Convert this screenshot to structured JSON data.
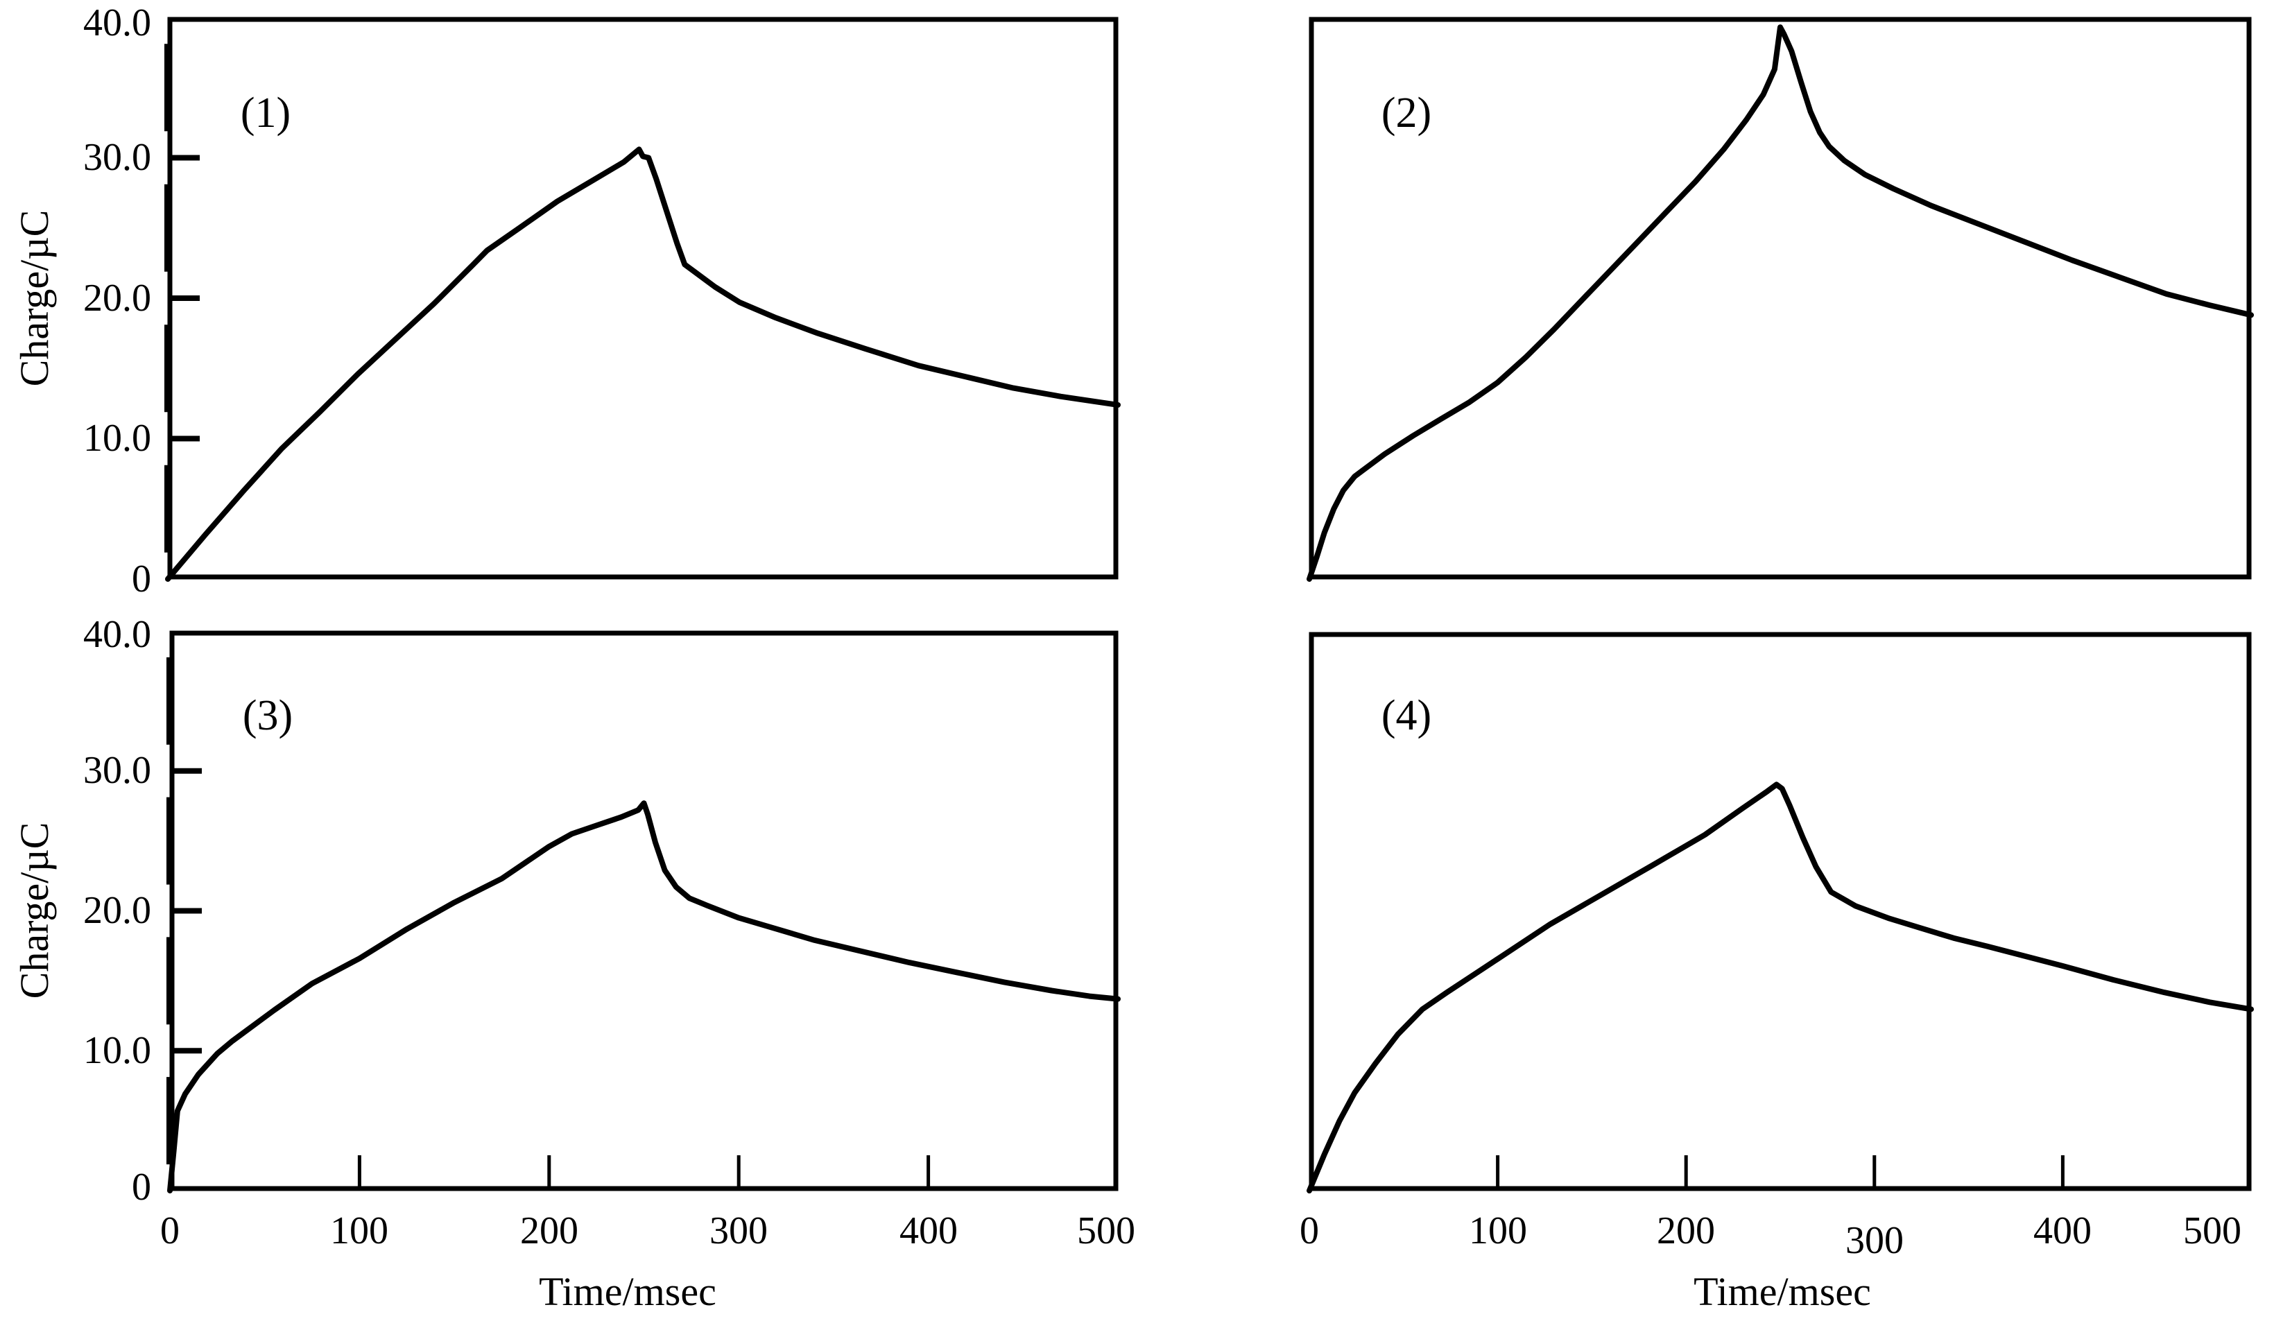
{
  "figure": {
    "background": "#ffffff",
    "line_color": "#000000",
    "description": "Four-panel line figure: charge versus time transients, panels (1)-(4)"
  },
  "chart_data": [
    {
      "type": "line",
      "panel": "(1)",
      "xlabel": "",
      "ylabel": "Charge/µC",
      "xlim": [
        0,
        500
      ],
      "ylim": [
        0,
        40
      ],
      "grid": false,
      "legend": null,
      "x_ticks": [],
      "x_tick_labels": [],
      "y_ticks": [
        30,
        20,
        10
      ],
      "y_tick_labels": [
        "40.0",
        "30.0",
        "20.0",
        "10.0",
        "0"
      ],
      "series": [
        {
          "name": "charge-transient-1",
          "points": [
            [
              0,
              0
            ],
            [
              20,
              3.2
            ],
            [
              40,
              6.3
            ],
            [
              60,
              9.3
            ],
            [
              80,
              11.9
            ],
            [
              100,
              14.6
            ],
            [
              120,
              17.1
            ],
            [
              140,
              19.6
            ],
            [
              160,
              22.3
            ],
            [
              168,
              23.4
            ],
            [
              185,
              25.0
            ],
            [
              205,
              26.9
            ],
            [
              225,
              28.5
            ],
            [
              240,
              29.7
            ],
            [
              248,
              30.6
            ],
            [
              250,
              30.1
            ],
            [
              253,
              30.0
            ],
            [
              257,
              28.5
            ],
            [
              262,
              26.4
            ],
            [
              268,
              23.9
            ],
            [
              272,
              22.4
            ],
            [
              277,
              21.9
            ],
            [
              288,
              20.8
            ],
            [
              301,
              19.7
            ],
            [
              320,
              18.6
            ],
            [
              342,
              17.5
            ],
            [
              367,
              16.4
            ],
            [
              395,
              15.2
            ],
            [
              420,
              14.4
            ],
            [
              445,
              13.6
            ],
            [
              470,
              13.0
            ],
            [
              500,
              12.4
            ]
          ]
        }
      ]
    },
    {
      "type": "line",
      "panel": "(2)",
      "xlabel": "",
      "ylabel": "",
      "xlim": [
        0,
        500
      ],
      "ylim": [
        0,
        40
      ],
      "grid": false,
      "legend": null,
      "x_ticks": [],
      "x_tick_labels": [],
      "y_ticks": [],
      "y_tick_labels": [],
      "series": [
        {
          "name": "charge-transient-2",
          "points": [
            [
              0,
              0
            ],
            [
              4,
              1.6
            ],
            [
              8,
              3.3
            ],
            [
              13,
              5.0
            ],
            [
              18,
              6.3
            ],
            [
              24,
              7.3
            ],
            [
              28,
              7.7
            ],
            [
              40,
              8.9
            ],
            [
              55,
              10.2
            ],
            [
              70,
              11.4
            ],
            [
              85,
              12.6
            ],
            [
              100,
              14.0
            ],
            [
              115,
              15.8
            ],
            [
              130,
              17.8
            ],
            [
              145,
              19.9
            ],
            [
              160,
              22.0
            ],
            [
              175,
              24.1
            ],
            [
              190,
              26.2
            ],
            [
              205,
              28.3
            ],
            [
              220,
              30.6
            ],
            [
              232,
              32.7
            ],
            [
              241,
              34.5
            ],
            [
              247,
              36.3
            ],
            [
              250,
              39.3
            ],
            [
              252,
              38.8
            ],
            [
              256,
              37.6
            ],
            [
              261,
              35.4
            ],
            [
              266,
              33.3
            ],
            [
              271,
              31.8
            ],
            [
              276,
              30.8
            ],
            [
              280,
              30.3
            ],
            [
              284,
              29.8
            ],
            [
              295,
              28.8
            ],
            [
              310,
              27.8
            ],
            [
              330,
              26.6
            ],
            [
              355,
              25.3
            ],
            [
              380,
              24.0
            ],
            [
              405,
              22.7
            ],
            [
              430,
              21.5
            ],
            [
              455,
              20.3
            ],
            [
              478,
              19.5
            ],
            [
              500,
              18.8
            ]
          ]
        }
      ]
    },
    {
      "type": "line",
      "panel": "(3)",
      "xlabel": "Time/msec",
      "ylabel": "Charge/µC",
      "xlim": [
        0,
        500
      ],
      "ylim": [
        0,
        40
      ],
      "grid": false,
      "legend": null,
      "x_ticks": [
        100,
        200,
        300,
        400
      ],
      "x_tick_labels": [
        "0",
        "100",
        "200",
        "300",
        "400",
        "500"
      ],
      "y_ticks": [
        30,
        20,
        10
      ],
      "y_tick_labels": [
        "40.0",
        "30.0",
        "20.0",
        "10.0",
        "0"
      ],
      "series": [
        {
          "name": "charge-transient-3",
          "points": [
            [
              0,
              0
            ],
            [
              2,
              2.8
            ],
            [
              4,
              5.7
            ],
            [
              8,
              6.9
            ],
            [
              15,
              8.3
            ],
            [
              25,
              9.8
            ],
            [
              33,
              10.7
            ],
            [
              38,
              11.2
            ],
            [
              55,
              12.9
            ],
            [
              75,
              14.8
            ],
            [
              100,
              16.6
            ],
            [
              125,
              18.7
            ],
            [
              150,
              20.6
            ],
            [
              175,
              22.3
            ],
            [
              200,
              24.6
            ],
            [
              212,
              25.5
            ],
            [
              225,
              26.1
            ],
            [
              238,
              26.7
            ],
            [
              247,
              27.2
            ],
            [
              250,
              27.7
            ],
            [
              252,
              26.9
            ],
            [
              256,
              24.9
            ],
            [
              261,
              22.9
            ],
            [
              267,
              21.7
            ],
            [
              274,
              20.9
            ],
            [
              283,
              20.4
            ],
            [
              300,
              19.5
            ],
            [
              320,
              18.7
            ],
            [
              340,
              17.9
            ],
            [
              365,
              17.1
            ],
            [
              390,
              16.3
            ],
            [
              415,
              15.6
            ],
            [
              440,
              14.9
            ],
            [
              465,
              14.3
            ],
            [
              485,
              13.9
            ],
            [
              500,
              13.7
            ]
          ]
        }
      ]
    },
    {
      "type": "line",
      "panel": "(4)",
      "xlabel": "Time/msec",
      "ylabel": "",
      "xlim": [
        0,
        500
      ],
      "ylim": [
        0,
        40
      ],
      "grid": false,
      "legend": null,
      "x_ticks": [
        100,
        200,
        300,
        400
      ],
      "x_tick_labels": [
        "0",
        "100",
        "200",
        "300",
        "400",
        "500"
      ],
      "y_ticks": [],
      "y_tick_labels": [],
      "series": [
        {
          "name": "charge-transient-4",
          "points": [
            [
              0,
              0
            ],
            [
              8,
              2.6
            ],
            [
              16,
              5.0
            ],
            [
              24,
              7.0
            ],
            [
              35,
              9.1
            ],
            [
              47,
              11.2
            ],
            [
              60,
              13.0
            ],
            [
              73,
              14.2
            ],
            [
              100,
              16.6
            ],
            [
              128,
              19.1
            ],
            [
              155,
              21.2
            ],
            [
              182,
              23.3
            ],
            [
              210,
              25.5
            ],
            [
              230,
              27.4
            ],
            [
              243,
              28.6
            ],
            [
              248,
              29.1
            ],
            [
              251,
              28.8
            ],
            [
              255,
              27.6
            ],
            [
              262,
              25.3
            ],
            [
              269,
              23.2
            ],
            [
              277,
              21.4
            ],
            [
              290,
              20.4
            ],
            [
              308,
              19.5
            ],
            [
              325,
              18.8
            ],
            [
              342,
              18.1
            ],
            [
              360,
              17.5
            ],
            [
              380,
              16.8
            ],
            [
              400,
              16.1
            ],
            [
              427,
              15.1
            ],
            [
              454,
              14.2
            ],
            [
              478,
              13.5
            ],
            [
              500,
              13.0
            ]
          ]
        }
      ]
    }
  ]
}
